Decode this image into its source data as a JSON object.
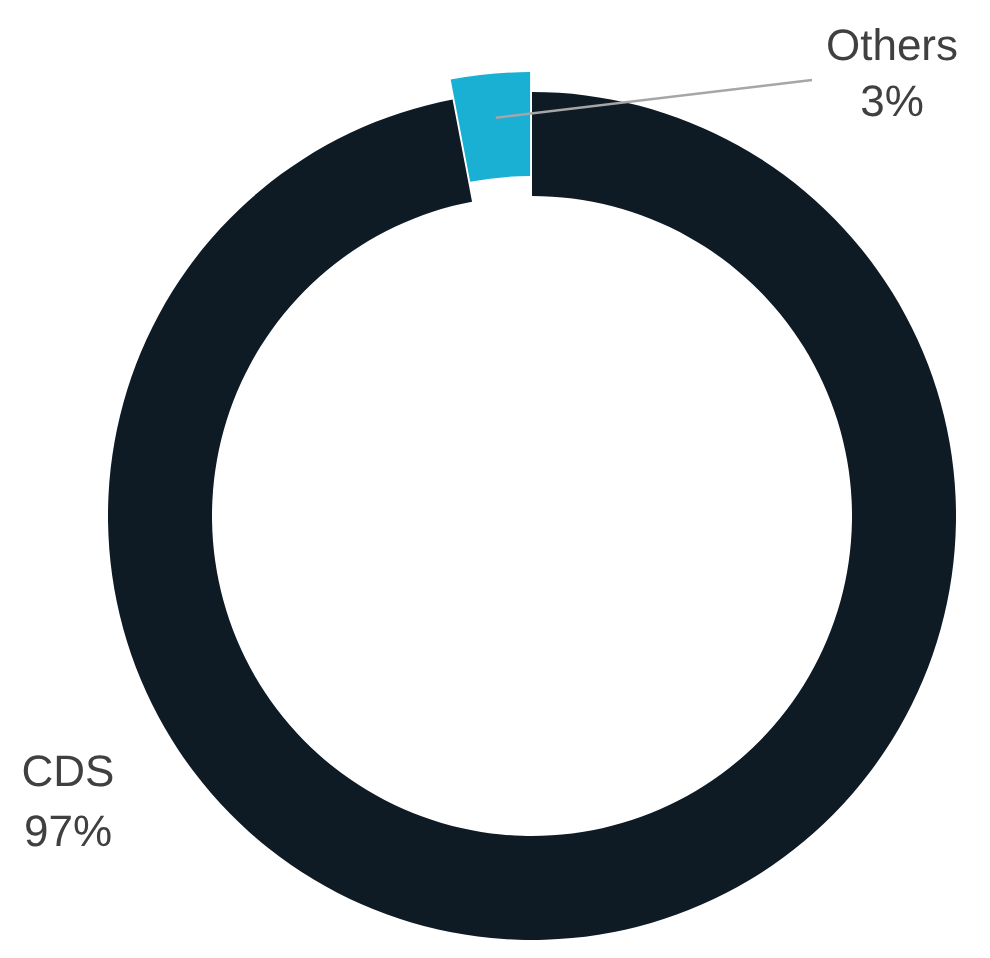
{
  "chart_data": {
    "type": "donut",
    "categories": [
      "CDS",
      "Others"
    ],
    "values": [
      97,
      3
    ],
    "colors": [
      "#0e1a24",
      "#1ab0d4"
    ],
    "value_labels": [
      "97%",
      "3%"
    ]
  }
}
